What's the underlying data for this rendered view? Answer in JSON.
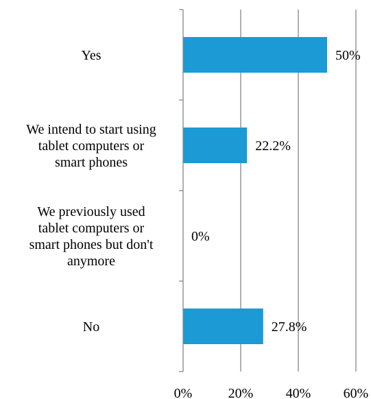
{
  "chart_data": {
    "type": "bar",
    "orientation": "horizontal",
    "categories": [
      [
        "Yes"
      ],
      [
        "We intend to start using",
        "tablet computers or",
        "smart phones"
      ],
      [
        "We previously used",
        "tablet computers or",
        "smart phones but don't",
        "anymore"
      ],
      [
        "No"
      ]
    ],
    "values": [
      50,
      22.2,
      0,
      27.8
    ],
    "data_labels": [
      "50%",
      "22.2%",
      "0%",
      "27.8%"
    ],
    "xlim": [
      0,
      60
    ],
    "x_ticks": [
      0,
      20,
      40,
      60
    ],
    "x_tick_labels": [
      "0%",
      "20%",
      "40%",
      "60%"
    ],
    "grid": "vertical",
    "legend": "none",
    "colors": {
      "bar": "#1b9ad6",
      "grid": "#868686",
      "axis": "#868686"
    }
  }
}
